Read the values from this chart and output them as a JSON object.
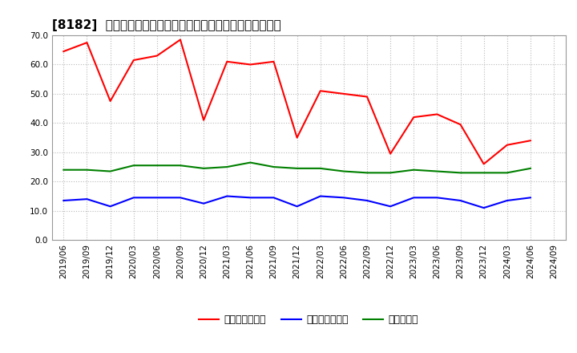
{
  "title": "[8182]  売上債権回転率、買入債務回転率、在庫回転率の推移",
  "dates": [
    "2019/06",
    "2019/09",
    "2019/12",
    "2020/03",
    "2020/06",
    "2020/09",
    "2020/12",
    "2021/03",
    "2021/06",
    "2021/09",
    "2021/12",
    "2022/03",
    "2022/06",
    "2022/09",
    "2022/12",
    "2023/03",
    "2023/06",
    "2023/09",
    "2023/12",
    "2024/03",
    "2024/06",
    "2024/09"
  ],
  "receivables_turnover": [
    64.5,
    67.5,
    47.5,
    61.5,
    63.0,
    68.5,
    41.0,
    61.0,
    60.0,
    61.0,
    35.0,
    51.0,
    50.0,
    49.0,
    29.5,
    42.0,
    43.0,
    39.5,
    26.0,
    32.5,
    34.0,
    null
  ],
  "payables_turnover": [
    13.5,
    14.0,
    11.5,
    14.5,
    14.5,
    14.5,
    12.5,
    15.0,
    14.5,
    14.5,
    11.5,
    15.0,
    14.5,
    13.5,
    11.5,
    14.5,
    14.5,
    13.5,
    11.0,
    13.5,
    14.5,
    null
  ],
  "inventory_turnover": [
    24.0,
    24.0,
    23.5,
    25.5,
    25.5,
    25.5,
    24.5,
    25.0,
    26.5,
    25.0,
    24.5,
    24.5,
    23.5,
    23.0,
    23.0,
    24.0,
    23.5,
    23.0,
    23.0,
    23.0,
    24.5,
    null
  ],
  "receivables_color": "#ff0000",
  "payables_color": "#0000ff",
  "inventory_color": "#008000",
  "ylim": [
    0.0,
    70.0
  ],
  "yticks": [
    0.0,
    10.0,
    20.0,
    30.0,
    40.0,
    50.0,
    60.0,
    70.0
  ],
  "legend_labels": [
    "売上債権回転率",
    "買入債務回転率",
    "在庫回転率"
  ],
  "background_color": "#ffffff",
  "grid_color": "#aaaaaa",
  "title_fontsize": 11,
  "tick_fontsize": 7.5,
  "legend_fontsize": 9
}
